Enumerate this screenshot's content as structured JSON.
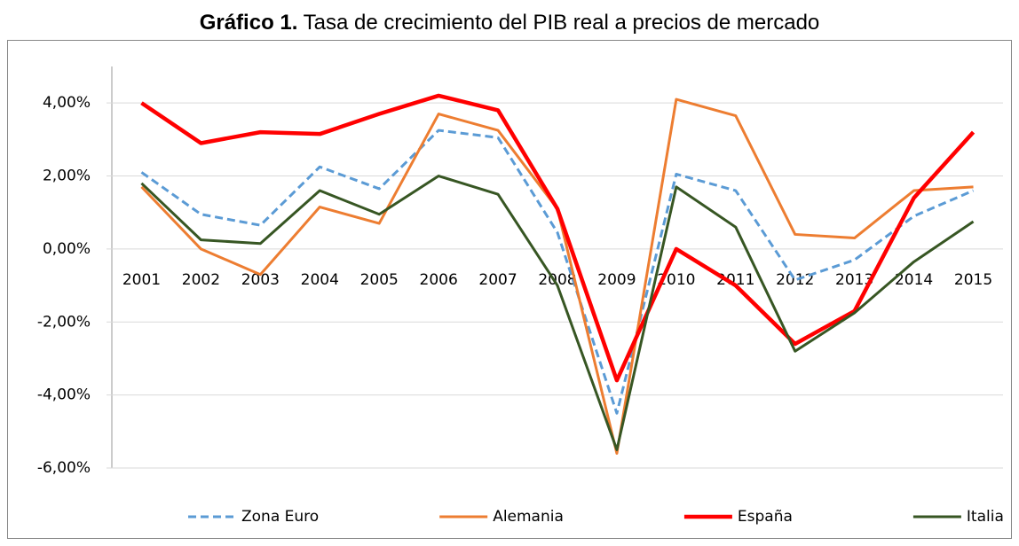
{
  "chart_data": {
    "type": "line",
    "figure_label": "Gráfico 1.",
    "title": "Tasa de crecimiento del PIB real a precios de mercado",
    "categories": [
      "2001",
      "2002",
      "2003",
      "2004",
      "2005",
      "2006",
      "2007",
      "2008",
      "2009",
      "2010",
      "2011",
      "2012",
      "2013",
      "2014",
      "2015"
    ],
    "series": [
      {
        "name": "Zona Euro",
        "color": "#5b9bd5",
        "line_style": "dashed",
        "values": [
          2.1,
          0.95,
          0.65,
          2.25,
          1.65,
          3.25,
          3.05,
          0.45,
          -4.5,
          2.05,
          1.6,
          -0.85,
          -0.3,
          0.9,
          1.6
        ]
      },
      {
        "name": "Alemania",
        "color": "#ed7d31",
        "line_style": "solid",
        "values": [
          1.7,
          0.0,
          -0.7,
          1.15,
          0.7,
          3.7,
          3.25,
          1.1,
          -5.6,
          4.1,
          3.65,
          0.4,
          0.3,
          1.6,
          1.7
        ]
      },
      {
        "name": "España",
        "color": "#ff0000",
        "line_style": "bold",
        "values": [
          4.0,
          2.9,
          3.2,
          3.15,
          3.7,
          4.2,
          3.8,
          1.1,
          -3.6,
          0.0,
          -1.0,
          -2.6,
          -1.7,
          1.4,
          3.2
        ]
      },
      {
        "name": "Italia",
        "color": "#375623",
        "line_style": "solid",
        "values": [
          1.8,
          0.25,
          0.15,
          1.6,
          0.95,
          2.0,
          1.5,
          -1.0,
          -5.5,
          1.7,
          0.6,
          -2.8,
          -1.75,
          -0.35,
          0.75
        ]
      }
    ],
    "ylim": [
      -6,
      5
    ],
    "yticks": [
      {
        "value": -6,
        "label": "-6,00%"
      },
      {
        "value": -4,
        "label": "-4,00%"
      },
      {
        "value": -2,
        "label": "-2,00%"
      },
      {
        "value": 0,
        "label": "0,00%"
      },
      {
        "value": 2,
        "label": "2,00%"
      },
      {
        "value": 4,
        "label": "4,00%"
      }
    ],
    "grid": true,
    "legend": "bottom"
  }
}
